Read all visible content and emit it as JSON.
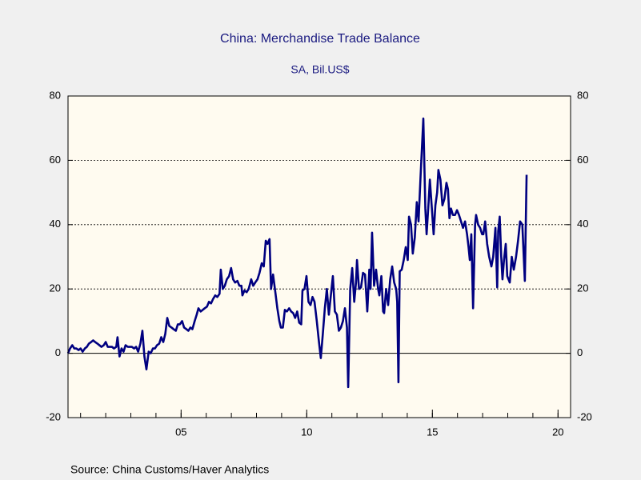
{
  "chart_data": {
    "type": "line",
    "title": "China: Merchandise Trade Balance",
    "subtitle": "SA, Bil.US$",
    "source": "Source:  China Customs/Haver Analytics",
    "color": "#000080",
    "xlim": [
      2000.5,
      2020.5
    ],
    "xticks": [
      {
        "value": 2005,
        "label": "05"
      },
      {
        "value": 2010,
        "label": "10"
      },
      {
        "value": 2015,
        "label": "15"
      },
      {
        "value": 2020,
        "label": "20"
      }
    ],
    "ylim": [
      -20,
      80
    ],
    "yticks": [
      -20,
      0,
      20,
      40,
      60,
      80
    ],
    "y2lim": [
      -20,
      80
    ],
    "y2ticks": [
      -20,
      0,
      20,
      40,
      60,
      80
    ],
    "grid": true,
    "x": [
      2000.5,
      2000.58,
      2000.67,
      2000.75,
      2000.83,
      2000.92,
      2001.0,
      2001.08,
      2001.17,
      2001.25,
      2001.33,
      2001.42,
      2001.5,
      2001.58,
      2001.67,
      2001.75,
      2001.83,
      2001.92,
      2002.0,
      2002.08,
      2002.17,
      2002.25,
      2002.33,
      2002.42,
      2002.47,
      2002.55,
      2002.63,
      2002.71,
      2002.79,
      2002.88,
      2002.96,
      2003.04,
      2003.13,
      2003.21,
      2003.29,
      2003.38,
      2003.46,
      2003.54,
      2003.62,
      2003.71,
      2003.79,
      2003.88,
      2003.96,
      2004.04,
      2004.13,
      2004.21,
      2004.29,
      2004.37,
      2004.45,
      2004.53,
      2004.62,
      2004.7,
      2004.79,
      2004.87,
      2004.95,
      2005.04,
      2005.12,
      2005.21,
      2005.29,
      2005.37,
      2005.45,
      2005.54,
      2005.62,
      2005.69,
      2005.78,
      2005.86,
      2005.94,
      2006.03,
      2006.11,
      2006.19,
      2006.28,
      2006.36,
      2006.44,
      2006.53,
      2006.58,
      2006.66,
      2006.74,
      2006.82,
      2006.91,
      2006.99,
      2007.07,
      2007.15,
      2007.24,
      2007.32,
      2007.4,
      2007.44,
      2007.52,
      2007.61,
      2007.69,
      2007.79,
      2007.87,
      2007.95,
      2008.04,
      2008.12,
      2008.21,
      2008.29,
      2008.37,
      2008.44,
      2008.52,
      2008.58,
      2008.66,
      2008.75,
      2008.83,
      2008.91,
      2008.97,
      2009.05,
      2009.13,
      2009.21,
      2009.3,
      2009.38,
      2009.46,
      2009.54,
      2009.62,
      2009.7,
      2009.78,
      2009.83,
      2009.91,
      2009.99,
      2010.07,
      2010.15,
      2010.23,
      2010.31,
      2010.4,
      2010.48,
      2010.56,
      2010.64,
      2010.72,
      2010.8,
      2010.88,
      2010.96,
      2011.04,
      2011.12,
      2011.2,
      2011.28,
      2011.36,
      2011.44,
      2011.52,
      2011.6,
      2011.65,
      2011.73,
      2011.81,
      2011.89,
      2011.96,
      2012.0,
      2012.08,
      2012.16,
      2012.24,
      2012.32,
      2012.41,
      2012.49,
      2012.54,
      2012.6,
      2012.68,
      2012.76,
      2012.84,
      2012.89,
      2012.97,
      2013.04,
      2013.08,
      2013.16,
      2013.24,
      2013.32,
      2013.4,
      2013.48,
      2013.56,
      2013.6,
      2013.65,
      2013.7,
      2013.78,
      2013.86,
      2013.94,
      2014.02,
      2014.07,
      2014.15,
      2014.22,
      2014.3,
      2014.38,
      2014.45,
      2014.53,
      2014.64,
      2014.72,
      2014.77,
      2014.85,
      2014.9,
      2014.98,
      2015.05,
      2015.12,
      2015.19,
      2015.24,
      2015.32,
      2015.4,
      2015.48,
      2015.56,
      2015.62,
      2015.68,
      2015.74,
      2015.82,
      2015.9,
      2015.98,
      2016.06,
      2016.14,
      2016.22,
      2016.3,
      2016.38,
      2016.44,
      2016.49,
      2016.55,
      2016.62,
      2016.7,
      2016.74,
      2016.82,
      2016.9,
      2016.98,
      2017.03,
      2017.1,
      2017.18,
      2017.26,
      2017.35,
      2017.42,
      2017.51,
      2017.58,
      2017.62,
      2017.68,
      2017.74,
      2017.79,
      2017.85,
      2017.92,
      2017.98,
      2018.08,
      2018.16,
      2018.24,
      2018.33,
      2018.41,
      2018.49,
      2018.58,
      2018.68,
      2018.75
    ],
    "values": [
      0,
      1.5,
      2.5,
      1.5,
      1.5,
      1,
      1.5,
      0.5,
      1.5,
      2,
      3,
      3.5,
      4,
      3.5,
      3,
      2.5,
      2,
      2.5,
      3.5,
      2,
      2,
      2,
      1.5,
      2,
      5,
      -1,
      1.5,
      0.5,
      2.5,
      2,
      2,
      2,
      1.5,
      2,
      0.5,
      3,
      7,
      -1,
      -5,
      0.5,
      0,
      1.5,
      1.5,
      2.5,
      3,
      5,
      3.5,
      6,
      11,
      8.5,
      8,
      7.5,
      7,
      9,
      9,
      10,
      8,
      7.5,
      7,
      8,
      7.5,
      10,
      12,
      14,
      13,
      13.5,
      14,
      14.5,
      16,
      15.5,
      17,
      18,
      17.5,
      18.5,
      26,
      20,
      21,
      23,
      24,
      26.5,
      23,
      22,
      22.5,
      21,
      21,
      18,
      19.5,
      19,
      20,
      23,
      21,
      22,
      23,
      25,
      28,
      27,
      35,
      34,
      35.5,
      20,
      24.5,
      19,
      14,
      10,
      8,
      8,
      13.5,
      13,
      14,
      13,
      12.5,
      11,
      13,
      9.5,
      9,
      19.5,
      20,
      24,
      16,
      15,
      17.5,
      16,
      10,
      4,
      -1.5,
      6,
      14,
      20,
      12,
      18,
      24,
      13,
      12,
      7,
      8,
      10,
      14,
      8,
      -10.5,
      20,
      26.5,
      16,
      22,
      29,
      20,
      20.5,
      25,
      24.5,
      13,
      26,
      20,
      37.5,
      21,
      26,
      20,
      18,
      24,
      13,
      12.5,
      20,
      15,
      23,
      27,
      22,
      20,
      16,
      -9,
      25.5,
      26,
      29,
      33,
      29,
      42.5,
      40,
      31,
      36,
      47,
      41,
      55,
      73,
      45,
      37,
      47,
      54,
      45,
      37,
      46,
      50,
      57,
      54,
      46,
      48,
      53,
      51,
      42,
      45,
      43,
      43,
      44.5,
      43,
      41,
      39,
      41,
      37,
      33,
      29,
      37,
      14,
      40,
      43,
      40,
      39,
      37,
      37,
      41,
      34,
      30,
      27,
      30,
      39,
      20.5,
      38,
      42.5,
      30,
      23,
      29,
      34,
      24,
      22,
      30,
      26,
      30,
      35,
      41,
      40,
      22.5,
      55.5
    ]
  }
}
